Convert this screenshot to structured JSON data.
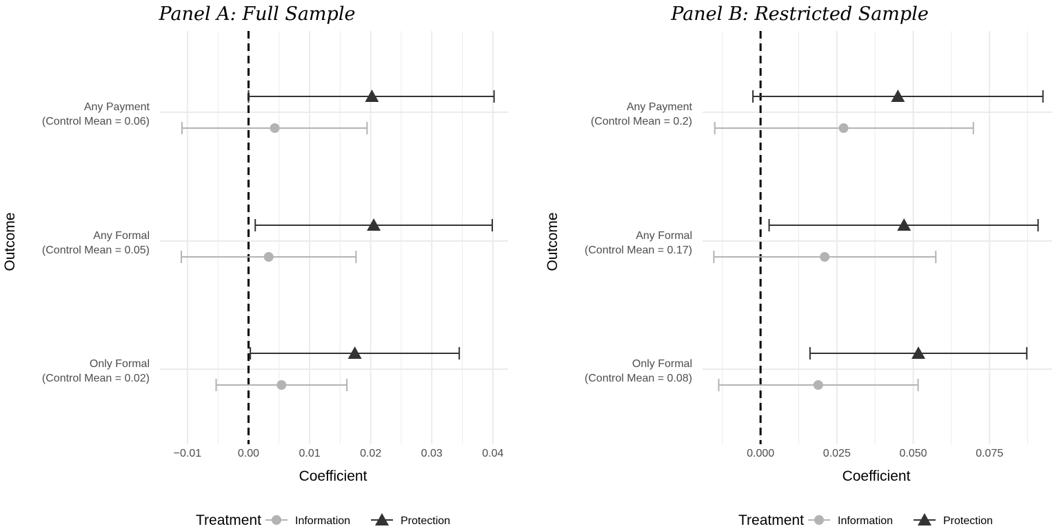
{
  "chart_data": [
    {
      "type": "scatter",
      "subtype": "coefficient-plot-with-error-bars",
      "title": "Panel A: Full Sample",
      "xlabel": "Coefficient",
      "ylabel": "Outcome",
      "xlim": [
        -0.0145,
        0.0425
      ],
      "xticks": [
        -0.01,
        0.0,
        0.01,
        0.02,
        0.03,
        0.04
      ],
      "xtick_labels": [
        "−0.01",
        "0.00",
        "0.01",
        "0.02",
        "0.03",
        "0.04"
      ],
      "reference_line": 0,
      "grid": true,
      "categories": [
        {
          "line1": "Any Payment",
          "line2": "(Control Mean = 0.06)"
        },
        {
          "line1": "Any Formal",
          "line2": "(Control Mean = 0.05)"
        },
        {
          "line1": "Only Formal",
          "line2": "(Control Mean = 0.02)"
        }
      ],
      "series": [
        {
          "name": "Information",
          "marker": "circle",
          "color": "#b3b3b3",
          "values": [
            0.0043,
            0.0033,
            0.0054
          ],
          "ci_low": [
            -0.0109,
            -0.011,
            -0.0053
          ],
          "ci_high": [
            0.0194,
            0.0176,
            0.0161
          ]
        },
        {
          "name": "Protection",
          "marker": "triangle",
          "color": "#333333",
          "values": [
            0.0202,
            0.0205,
            0.0174
          ],
          "ci_low": [
            0.0,
            0.0011,
            0.0003
          ],
          "ci_high": [
            0.0402,
            0.0399,
            0.0345
          ]
        }
      ]
    },
    {
      "type": "scatter",
      "subtype": "coefficient-plot-with-error-bars",
      "title": "Panel B: Restricted Sample",
      "xlabel": "Coefficient",
      "ylabel": "Outcome",
      "xlim": [
        -0.019,
        0.0955
      ],
      "xticks": [
        0.0,
        0.025,
        0.05,
        0.075
      ],
      "xtick_labels": [
        "0.000",
        "0.025",
        "0.050",
        "0.075"
      ],
      "reference_line": 0,
      "grid": true,
      "categories": [
        {
          "line1": "Any Payment",
          "line2": "(Control Mean = 0.2)"
        },
        {
          "line1": "Any Formal",
          "line2": "(Control Mean = 0.17)"
        },
        {
          "line1": "Only Formal",
          "line2": "(Control Mean = 0.08)"
        }
      ],
      "series": [
        {
          "name": "Information",
          "marker": "circle",
          "color": "#b3b3b3",
          "values": [
            0.0272,
            0.021,
            0.0189
          ],
          "ci_low": [
            -0.015,
            -0.0153,
            -0.0137
          ],
          "ci_high": [
            0.0697,
            0.0574,
            0.0516
          ]
        },
        {
          "name": "Protection",
          "marker": "triangle",
          "color": "#333333",
          "values": [
            0.045,
            0.047,
            0.0517
          ],
          "ci_low": [
            -0.0025,
            0.0028,
            0.0162
          ],
          "ci_high": [
            0.0925,
            0.0909,
            0.0872
          ]
        }
      ]
    }
  ],
  "legend": {
    "title": "Treatment",
    "position": "bottom",
    "items": [
      {
        "name": "Information",
        "marker": "circle",
        "color": "#b3b3b3"
      },
      {
        "name": "Protection",
        "marker": "triangle",
        "color": "#333333"
      }
    ]
  },
  "colors": {
    "grid": "#ebebeb",
    "reference_line": "#000000",
    "tick_text": "#4d4d4d"
  }
}
